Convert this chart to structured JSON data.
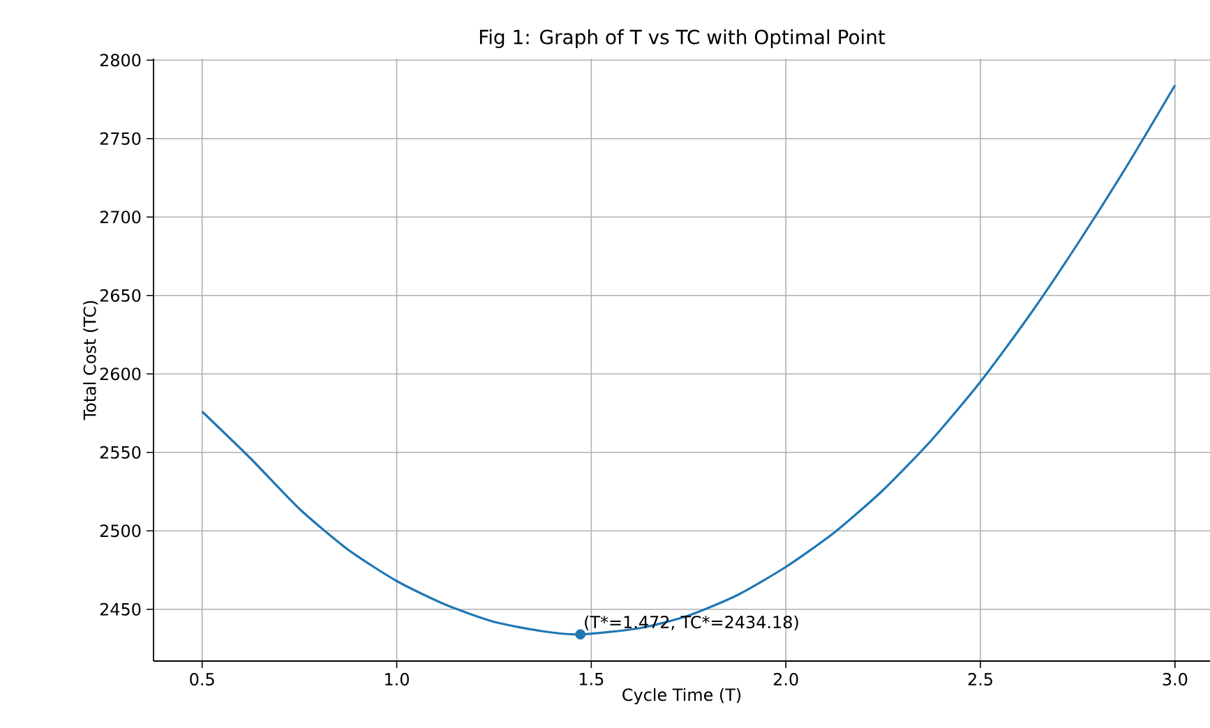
{
  "chart_data": {
    "type": "line",
    "title": "Fig 1: Graph of T vs TC with Optimal Point",
    "xlabel": "Cycle Time (T)",
    "ylabel": "Total Cost (TC)",
    "xlim": [
      0.375,
      3.09
    ],
    "ylim": [
      2417,
      2801
    ],
    "xticks": [
      {
        "value": 0.5,
        "label": "0.5"
      },
      {
        "value": 1.0,
        "label": "1.0"
      },
      {
        "value": 1.5,
        "label": "1.5"
      },
      {
        "value": 2.0,
        "label": "2.0"
      },
      {
        "value": 2.5,
        "label": "2.5"
      },
      {
        "value": 3.0,
        "label": "3.0"
      }
    ],
    "yticks": [
      2450,
      2500,
      2550,
      2600,
      2650,
      2700,
      2750,
      2800
    ],
    "grid": true,
    "series": [
      {
        "color": "#1f77b4",
        "x": [
          0.5,
          0.625,
          0.75,
          0.875,
          1.0,
          1.125,
          1.25,
          1.375,
          1.472,
          1.625,
          1.75,
          1.875,
          2.0,
          2.125,
          2.25,
          2.375,
          2.5,
          2.625,
          2.75,
          2.875,
          3.0
        ],
        "values": [
          2576,
          2546,
          2514,
          2488,
          2468,
          2453,
          2442,
          2436,
          2434,
          2438,
          2446,
          2459,
          2477,
          2499,
          2526,
          2558,
          2595,
          2637,
          2683,
          2732,
          2784
        ]
      },
      {
        "type": "scatter",
        "color": "#1f77b4",
        "marker": "circle",
        "x": [
          1.472
        ],
        "values": [
          2434
        ]
      }
    ],
    "annotations": [
      {
        "text": "(T*=1.472, TC*=2434.18)",
        "x": 1.472,
        "y": 2434.18
      }
    ]
  }
}
